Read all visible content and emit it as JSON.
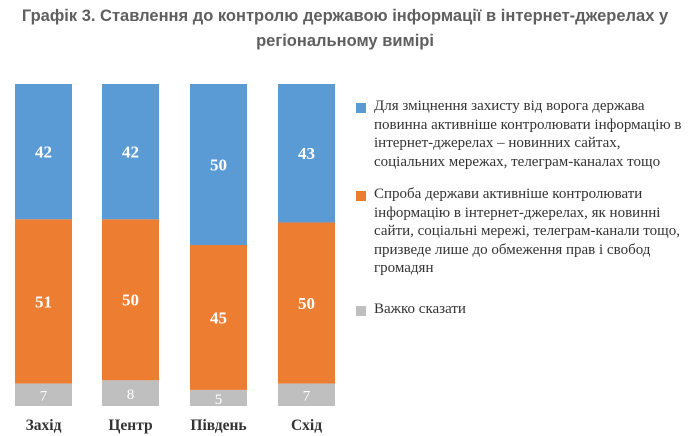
{
  "chart_data": {
    "type": "bar",
    "stacked": true,
    "title": "Графік 3. Ставлення до контролю державою інформації в інтернет-джерелах у регіональному вимірі",
    "categories": [
      "Захід",
      "Центр",
      "Південь",
      "Схід"
    ],
    "series": [
      {
        "name": "Важко сказати",
        "values": [
          7,
          8,
          5,
          7
        ],
        "color": "#bfbfbf"
      },
      {
        "name": "Спроба держави активніше контролювати інформацію в інтернет-джерелах, як новинні сайти, соціальні мережі, телеграм-канали тощо, призведе лише до обмеження прав і свобод громадян",
        "values": [
          51,
          50,
          45,
          50
        ],
        "color": "#ed7d31"
      },
      {
        "name": "Для зміцнення захисту від ворога держава повинна активніше контролювати інформацію в інтернет-джерелах – новинних сайтах, соціальних мережах, телеграм-каналах тощо",
        "values": [
          42,
          42,
          50,
          43
        ],
        "color": "#5b9bd5"
      }
    ],
    "ylim": [
      0,
      100
    ],
    "grid": false,
    "legend_position": "right"
  },
  "legend_order": [
    2,
    1,
    0
  ]
}
